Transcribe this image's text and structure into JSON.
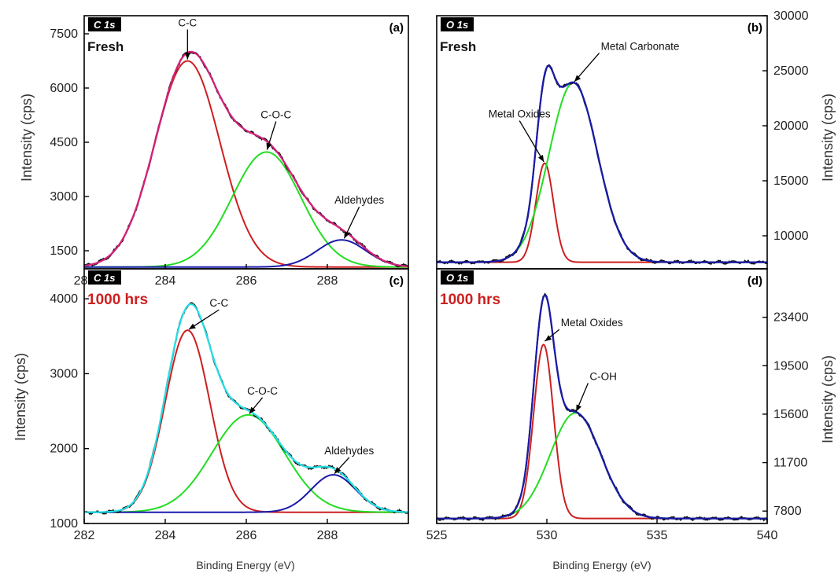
{
  "figure": {
    "xlabel_left": "Binding Energy (eV)",
    "xlabel_right": "Binding Energy (eV)",
    "ylabel_left_top": "Intensity (cps)",
    "ylabel_left_bottom": "Intensity (cps)",
    "ylabel_right_top": "Intensity (cps)",
    "ylabel_right_bottom": "Intensity (cps)",
    "colors": {
      "raw": "#111111",
      "peak_red": "#cc1f1f",
      "peak_green": "#22dd22",
      "peak_blue": "#1a1aaa",
      "envelope_a": "#d6207a",
      "envelope_c": "#22e0e8",
      "envelope_od": "#1a1aaa",
      "sample_fresh": "#111111",
      "sample_1000": "#cc1f1f"
    }
  },
  "chart_data": [
    {
      "panel": "(a)",
      "type": "line",
      "spectrum": "C 1s",
      "sample": "Fresh",
      "xlim": [
        282,
        290
      ],
      "ylim": [
        1000,
        8000
      ],
      "xticks": [
        282,
        284,
        286,
        288
      ],
      "yticks": [
        1500,
        3000,
        4500,
        6000,
        7500
      ],
      "baseline": 1050,
      "peaks": [
        {
          "name": "C-C",
          "center": 284.55,
          "sigma": 0.8,
          "height": 5700,
          "color": "peak_red"
        },
        {
          "name": "C-O-C",
          "center": 286.5,
          "sigma": 0.85,
          "height": 3180,
          "color": "peak_green"
        },
        {
          "name": "Aldehydes",
          "center": 288.35,
          "sigma": 0.6,
          "height": 750,
          "color": "peak_blue"
        }
      ],
      "envelope_color": "envelope_a",
      "annotations": [
        {
          "text": "C-C",
          "x": 284.55,
          "y": 6750
        },
        {
          "text": "C-O-C",
          "x": 286.5,
          "y": 4250
        },
        {
          "text": "Aldehydes",
          "x": 288.4,
          "y": 1800
        }
      ]
    },
    {
      "panel": "(b)",
      "type": "line",
      "spectrum": "O 1s",
      "sample": "Fresh",
      "xlim": [
        525,
        540
      ],
      "ylim": [
        7000,
        30000
      ],
      "yaxis_side": "right",
      "yticks": [
        10000,
        15000,
        20000,
        25000,
        30000
      ],
      "baseline": 7600,
      "peaks": [
        {
          "name": "Metal Oxides",
          "center": 529.9,
          "sigma": 0.4,
          "height": 9000,
          "color": "peak_red"
        },
        {
          "name": "Metal Carbonate",
          "center": 531.2,
          "sigma": 1.1,
          "height": 16300,
          "color": "peak_green"
        }
      ],
      "envelope_color": "envelope_od",
      "annotations": [
        {
          "text": "Metal Oxides",
          "x": 529.9,
          "y": 16600
        },
        {
          "text": "Metal Carbonate",
          "x": 531.2,
          "y": 23900
        }
      ]
    },
    {
      "panel": "(c)",
      "type": "line",
      "spectrum": "C 1s",
      "sample": "1000 hrs",
      "xlim": [
        282,
        290
      ],
      "ylim": [
        1000,
        4400
      ],
      "xticks": [
        282,
        284,
        286,
        288
      ],
      "yticks": [
        1000,
        2000,
        3000,
        4000
      ],
      "baseline": 1150,
      "peaks": [
        {
          "name": "C-C",
          "center": 284.55,
          "sigma": 0.55,
          "height": 2430,
          "color": "peak_red"
        },
        {
          "name": "C-O-C",
          "center": 286.05,
          "sigma": 0.9,
          "height": 1300,
          "color": "peak_green"
        },
        {
          "name": "Aldehydes",
          "center": 288.15,
          "sigma": 0.55,
          "height": 500,
          "color": "peak_blue"
        }
      ],
      "envelope_color": "envelope_c",
      "annotations": [
        {
          "text": "C-C",
          "x": 284.55,
          "y": 3580
        },
        {
          "text": "C-O-C",
          "x": 286.05,
          "y": 2450
        },
        {
          "text": "Aldehydes",
          "x": 288.15,
          "y": 1650
        }
      ]
    },
    {
      "panel": "(d)",
      "type": "line",
      "spectrum": "O 1s",
      "sample": "1000 hrs",
      "xlim": [
        525,
        540
      ],
      "ylim": [
        6800,
        27300
      ],
      "yaxis_side": "right",
      "xticks": [
        525,
        530,
        535,
        540
      ],
      "yticks": [
        7800,
        11700,
        15600,
        19500,
        23400
      ],
      "baseline": 7200,
      "peaks": [
        {
          "name": "Metal Oxides",
          "center": 529.85,
          "sigma": 0.45,
          "height": 14000,
          "color": "peak_red"
        },
        {
          "name": "C-OH",
          "center": 531.3,
          "sigma": 1.15,
          "height": 8500,
          "color": "peak_green"
        }
      ],
      "envelope_color": "envelope_od",
      "annotations": [
        {
          "text": "Metal Oxides",
          "x": 529.85,
          "y": 21400
        },
        {
          "text": "C-OH",
          "x": 531.3,
          "y": 15700
        }
      ]
    }
  ]
}
